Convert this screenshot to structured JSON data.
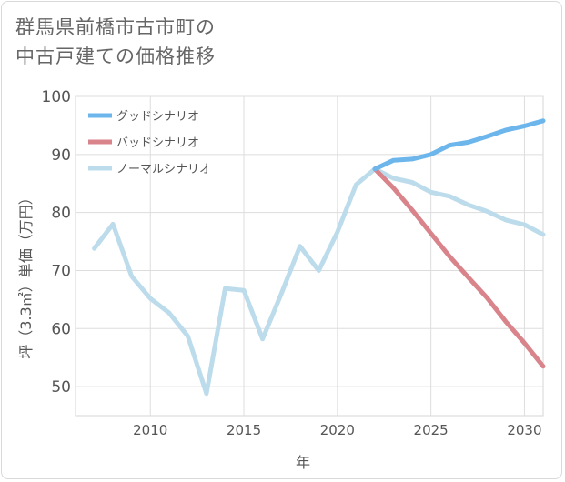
{
  "chart_data": {
    "type": "line",
    "title": [
      "群馬県前橋市古市町の",
      "中古戸建ての価格推移"
    ],
    "xlabel": "年",
    "ylabel": "坪（3.3㎡）単価（万円）",
    "xlim": [
      2006,
      2031
    ],
    "ylim": [
      45,
      100
    ],
    "xticks": [
      2010,
      2015,
      2020,
      2025,
      2030
    ],
    "yticks": [
      50,
      60,
      70,
      80,
      90,
      100
    ],
    "grid": true,
    "legend_position": "top-left",
    "series": [
      {
        "name": "グッドシナリオ",
        "color": "#6cb6ec",
        "x": [
          2022,
          2023,
          2024,
          2025,
          2026,
          2027,
          2028,
          2029,
          2030,
          2031
        ],
        "y": [
          87.5,
          89.0,
          89.2,
          90.0,
          91.6,
          92.1,
          93.1,
          94.2,
          94.9,
          95.8
        ]
      },
      {
        "name": "バッドシナリオ",
        "color": "#d9838b",
        "x": [
          2022,
          2023,
          2024,
          2025,
          2026,
          2027,
          2028,
          2029,
          2030,
          2031
        ],
        "y": [
          87.5,
          84.2,
          80.4,
          76.4,
          72.4,
          68.8,
          65.3,
          61.2,
          57.5,
          53.5
        ]
      },
      {
        "name": "ノーマルシナリオ",
        "color": "#bcdcec",
        "x": [
          2007,
          2008,
          2009,
          2010,
          2011,
          2012,
          2013,
          2014,
          2015,
          2016,
          2017,
          2018,
          2019,
          2020,
          2021,
          2022,
          2023,
          2024,
          2025,
          2026,
          2027,
          2028,
          2029,
          2030,
          2031
        ],
        "y": [
          73.8,
          78.0,
          69.0,
          65.2,
          62.7,
          58.7,
          48.8,
          66.9,
          66.6,
          58.2,
          66.0,
          74.2,
          70.0,
          76.6,
          84.8,
          87.5,
          85.9,
          85.2,
          83.5,
          82.8,
          81.3,
          80.2,
          78.7,
          77.9,
          76.2
        ]
      }
    ]
  }
}
